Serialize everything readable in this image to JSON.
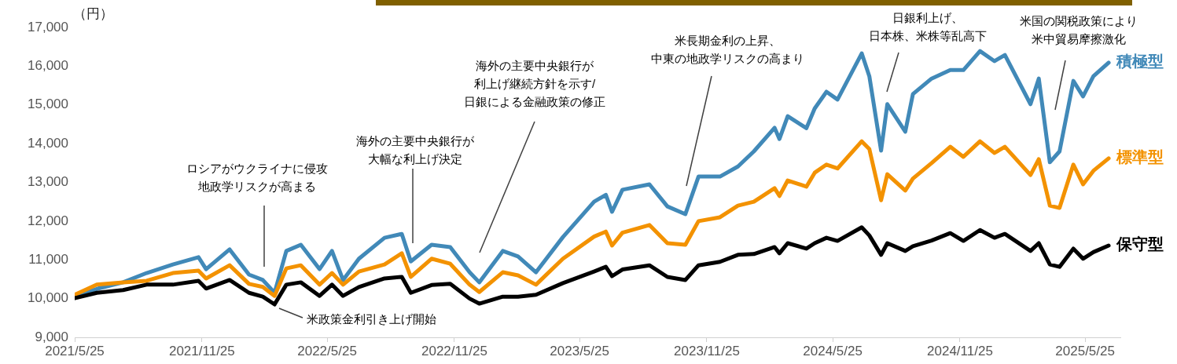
{
  "chart_data": {
    "type": "line",
    "ylabel": "（円）",
    "x": [
      "2021-05-25",
      "2021-06-26",
      "2021-08-03",
      "2021-09-06",
      "2021-10-14",
      "2021-11-20",
      "2021-12-01",
      "2022-01-04",
      "2022-02-01",
      "2022-02-21",
      "2022-03-10",
      "2022-03-27",
      "2022-04-17",
      "2022-05-14",
      "2022-06-01",
      "2022-06-17",
      "2022-07-10",
      "2022-08-16",
      "2022-09-10",
      "2022-09-23",
      "2022-10-23",
      "2022-11-19",
      "2022-12-17",
      "2022-12-31",
      "2023-02-03",
      "2023-02-25",
      "2023-03-23",
      "2023-05-01",
      "2023-06-15",
      "2023-07-02",
      "2023-07-11",
      "2023-07-26",
      "2023-09-03",
      "2023-09-29",
      "2023-10-25",
      "2023-11-13",
      "2023-12-14",
      "2024-01-09",
      "2024-02-01",
      "2024-03-02",
      "2024-03-09",
      "2024-03-21",
      "2024-04-17",
      "2024-04-29",
      "2024-05-16",
      "2024-06-01",
      "2024-07-06",
      "2024-07-17",
      "2024-08-03",
      "2024-08-12",
      "2024-09-07",
      "2024-09-18",
      "2024-10-15",
      "2024-11-11",
      "2024-11-30",
      "2024-12-24",
      "2025-01-14",
      "2025-01-29",
      "2025-03-07",
      "2025-03-19",
      "2025-04-04",
      "2025-04-18",
      "2025-05-08",
      "2025-05-22",
      "2025-06-06",
      "2025-06-28"
    ],
    "series": [
      {
        "name": "積極型",
        "color": "#4189b8",
        "values": [
          10070,
          10250,
          10420,
          10660,
          10880,
          11070,
          10760,
          11270,
          10620,
          10480,
          10150,
          11230,
          11390,
          10760,
          11230,
          10480,
          11030,
          11570,
          11670,
          10960,
          11390,
          11330,
          10680,
          10420,
          11230,
          11090,
          10680,
          11590,
          12500,
          12680,
          12240,
          12810,
          12950,
          12380,
          12180,
          13150,
          13150,
          13410,
          13800,
          14410,
          14120,
          14710,
          14400,
          14910,
          15340,
          15140,
          16330,
          15740,
          13820,
          15020,
          14310,
          15280,
          15680,
          15900,
          15900,
          16390,
          16130,
          16290,
          15020,
          15680,
          13520,
          13800,
          15620,
          15220,
          15740,
          16090
        ]
      },
      {
        "name": "標準型",
        "color": "#f39200",
        "values": [
          10100,
          10360,
          10420,
          10460,
          10660,
          10720,
          10520,
          10860,
          10380,
          10300,
          10070,
          10780,
          10860,
          10360,
          10660,
          10360,
          10700,
          10880,
          11170,
          10560,
          11030,
          10900,
          10360,
          10170,
          10680,
          10600,
          10360,
          11030,
          11600,
          11730,
          11370,
          11700,
          11900,
          11430,
          11390,
          12000,
          12100,
          12400,
          12500,
          12850,
          12650,
          13050,
          12890,
          13250,
          13460,
          13360,
          14060,
          13860,
          12540,
          13210,
          12790,
          13100,
          13500,
          13920,
          13660,
          14060,
          13760,
          13920,
          13190,
          13600,
          12400,
          12340,
          13460,
          12950,
          13300,
          13620
        ]
      },
      {
        "name": "保守型",
        "color": "#000000",
        "values": [
          10010,
          10150,
          10220,
          10360,
          10360,
          10460,
          10260,
          10480,
          10150,
          10050,
          9850,
          10360,
          10420,
          10070,
          10360,
          10070,
          10300,
          10520,
          10560,
          10150,
          10350,
          10380,
          10000,
          9870,
          10050,
          10050,
          10100,
          10400,
          10700,
          10820,
          10580,
          10750,
          10860,
          10560,
          10480,
          10860,
          10950,
          11130,
          11150,
          11330,
          11170,
          11430,
          11290,
          11430,
          11570,
          11490,
          11840,
          11630,
          11130,
          11430,
          11230,
          11350,
          11500,
          11690,
          11490,
          11770,
          11570,
          11670,
          11230,
          11430,
          10880,
          10820,
          11290,
          11030,
          11200,
          11370
        ]
      }
    ],
    "xlim": [
      "2021-05-25",
      "2025-07-15"
    ],
    "xticks": [
      {
        "value": "2021-05-25",
        "label": "2021/5/25"
      },
      {
        "value": "2021-11-25",
        "label": "2021/11/25"
      },
      {
        "value": "2022-05-25",
        "label": "2022/5/25"
      },
      {
        "value": "2022-11-25",
        "label": "2022/11/25"
      },
      {
        "value": "2023-05-25",
        "label": "2023/5/25"
      },
      {
        "value": "2023-11-25",
        "label": "2023/11/25"
      },
      {
        "value": "2024-05-25",
        "label": "2024/5/25"
      },
      {
        "value": "2024-11-25",
        "label": "2024/11/25"
      },
      {
        "value": "2025-05-25",
        "label": "2025/5/25"
      }
    ],
    "ylim": [
      9000,
      17000
    ],
    "yticks": [
      {
        "value": 9000,
        "label": "9,000"
      },
      {
        "value": 10000,
        "label": "10,000"
      },
      {
        "value": 11000,
        "label": "11,000"
      },
      {
        "value": 12000,
        "label": "12,000"
      },
      {
        "value": 13000,
        "label": "13,000"
      },
      {
        "value": 14000,
        "label": "14,000"
      },
      {
        "value": 15000,
        "label": "15,000"
      },
      {
        "value": 16000,
        "label": "16,000"
      },
      {
        "value": 17000,
        "label": "17,000"
      }
    ],
    "annotations": [
      "ロシアがウクライナに侵攻地政学リスクが高まる",
      "米政策金利引き上げ開始",
      "海外の主要中央銀行が大幅な利上げ決定",
      "海外の主要中央銀行が利上げ継続方針を示す/日銀による金融政策の修正",
      "米長期金利の上昇、中東の地政学リスクの高まり",
      "日銀利上げ、日本株、米株等乱高下",
      "米国の関税政策により米中貿易摩擦激化"
    ],
    "grid": false,
    "marker": "none",
    "line_style": "solid"
  }
}
